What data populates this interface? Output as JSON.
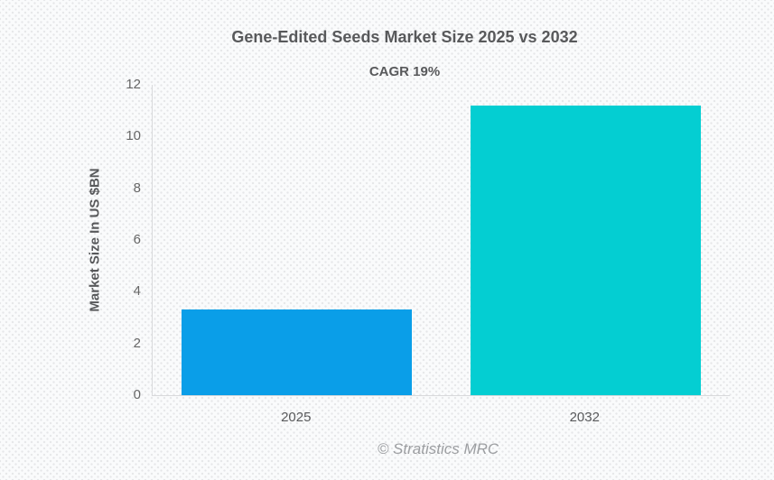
{
  "header": {
    "title": "Gene-Edited Seeds Market Size 2025 vs 2032",
    "subtitle": "CAGR 19%"
  },
  "footer": {
    "text": "© Stratistics MRC"
  },
  "chart_data": {
    "type": "bar",
    "title": "Gene-Edited Seeds Market Size 2025 vs 2032",
    "subtitle": "CAGR 19%",
    "categories": [
      "2025",
      "2032"
    ],
    "values": [
      3.3,
      11.2
    ],
    "bar_colors": [
      "#0a9ee8",
      "#04ced2"
    ],
    "xlabel": "",
    "ylabel": "Market Size In US $BN",
    "ylim": [
      0,
      12
    ],
    "yticks": [
      0,
      2,
      4,
      6,
      8,
      10,
      12
    ],
    "grid": false,
    "legend": "none",
    "source": "© Stratistics MRC"
  },
  "style": {
    "axis_color": "#d8d9db",
    "title_color": "#58595b",
    "tick_color": "#666666",
    "footer_color": "#9c9ea1"
  }
}
